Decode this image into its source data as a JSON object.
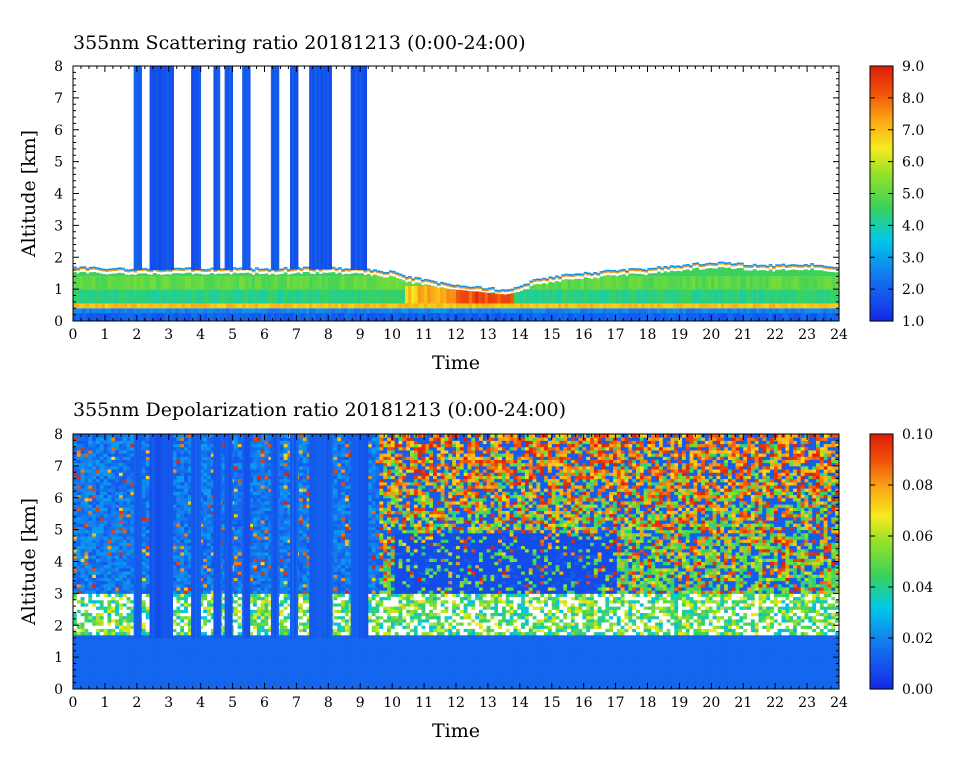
{
  "chart_data": [
    {
      "type": "heatmap",
      "title": "355nm Scattering ratio  20181213 (0:00-24:00)",
      "xlabel": "Time",
      "ylabel": "Altitude [km]",
      "xlim": [
        0,
        24
      ],
      "ylim": [
        0,
        8
      ],
      "x_ticks": [
        "0",
        "1",
        "2",
        "3",
        "4",
        "5",
        "6",
        "7",
        "8",
        "9",
        "10",
        "11",
        "12",
        "13",
        "14",
        "15",
        "16",
        "17",
        "18",
        "19",
        "20",
        "21",
        "22",
        "23",
        "24"
      ],
      "y_ticks": [
        "0",
        "1",
        "2",
        "3",
        "4",
        "5",
        "6",
        "7",
        "8"
      ],
      "colorbar": {
        "range": [
          1.0,
          9.0
        ],
        "ticks": [
          "1.0",
          "2.0",
          "3.0",
          "4.0",
          "5.0",
          "6.0",
          "7.0",
          "8.0",
          "9.0"
        ]
      },
      "cloud_columns": [
        {
          "t0": 1.9,
          "t1": 2.1,
          "value": 2.0
        },
        {
          "t0": 2.4,
          "t1": 3.1,
          "value": 1.7
        },
        {
          "t0": 3.7,
          "t1": 3.95,
          "value": 1.9
        },
        {
          "t0": 4.4,
          "t1": 4.6,
          "value": 1.9
        },
        {
          "t0": 4.75,
          "t1": 4.95,
          "value": 1.9
        },
        {
          "t0": 5.3,
          "t1": 5.5,
          "value": 1.9
        },
        {
          "t0": 6.2,
          "t1": 6.4,
          "value": 1.9
        },
        {
          "t0": 6.8,
          "t1": 7.0,
          "value": 1.9
        },
        {
          "t0": 7.4,
          "t1": 8.1,
          "value": 1.8
        },
        {
          "t0": 8.7,
          "t1": 9.2,
          "value": 1.8
        }
      ],
      "pbl_top_km": [
        [
          0,
          1.65
        ],
        [
          1,
          1.6
        ],
        [
          2,
          1.6
        ],
        [
          3,
          1.6
        ],
        [
          4,
          1.6
        ],
        [
          5,
          1.6
        ],
        [
          6,
          1.6
        ],
        [
          7,
          1.62
        ],
        [
          8,
          1.62
        ],
        [
          9,
          1.6
        ],
        [
          9.5,
          1.55
        ],
        [
          10,
          1.5
        ],
        [
          10.5,
          1.35
        ],
        [
          11,
          1.25
        ],
        [
          11.5,
          1.15
        ],
        [
          12,
          1.1
        ],
        [
          12.5,
          1.05
        ],
        [
          13,
          1.0
        ],
        [
          13.5,
          0.95
        ],
        [
          14,
          1.05
        ],
        [
          14.5,
          1.25
        ],
        [
          15,
          1.35
        ],
        [
          16,
          1.45
        ],
        [
          17,
          1.55
        ],
        [
          18,
          1.6
        ],
        [
          19,
          1.7
        ],
        [
          20,
          1.8
        ],
        [
          21,
          1.75
        ],
        [
          22,
          1.7
        ],
        [
          23,
          1.75
        ],
        [
          24,
          1.6
        ]
      ],
      "layer_values": [
        {
          "h0": 0.0,
          "h1": 0.25,
          "value": 2.0
        },
        {
          "h0": 0.25,
          "h1": 0.4,
          "value": 2.6
        },
        {
          "h0": 0.4,
          "h1": 0.55,
          "value": 7.0
        },
        {
          "h0": 0.55,
          "h1": 1.0,
          "value": 4.3
        },
        {
          "h0": 1.0,
          "h1": 1.4,
          "value": 5.0
        }
      ],
      "hotspot": {
        "t0": 10.4,
        "t1": 13.7,
        "h0": 0.55,
        "h1": 1.1,
        "value": 8.5
      }
    },
    {
      "type": "heatmap",
      "title": "355nm Depolarization ratio  20181213 (0:00-24:00)",
      "xlabel": "Time",
      "ylabel": "Altitude [km]",
      "xlim": [
        0,
        24
      ],
      "ylim": [
        0,
        8
      ],
      "x_ticks": [
        "0",
        "1",
        "2",
        "3",
        "4",
        "5",
        "6",
        "7",
        "8",
        "9",
        "10",
        "11",
        "12",
        "13",
        "14",
        "15",
        "16",
        "17",
        "18",
        "19",
        "20",
        "21",
        "22",
        "23",
        "24"
      ],
      "y_ticks": [
        "0",
        "1",
        "2",
        "3",
        "4",
        "5",
        "6",
        "7",
        "8"
      ],
      "colorbar": {
        "range": [
          0.0,
          0.1
        ],
        "ticks": [
          "0.00",
          "0.02",
          "0.04",
          "0.06",
          "0.08",
          "0.10"
        ]
      },
      "bands": [
        {
          "h0": 0.0,
          "h1": 1.7,
          "value": 0.014
        },
        {
          "h0": 1.7,
          "h1": 3.0,
          "value": 0.045
        },
        {
          "h0": 3.0,
          "h1": 8.0,
          "value": 0.01
        }
      ],
      "noisy_region": {
        "t0": 9.5,
        "t1": 24,
        "h0": 3.0,
        "h1": 8.0,
        "value": 0.085
      },
      "cloud_columns": [
        {
          "t0": 1.9,
          "t1": 2.1,
          "value": 0.012
        },
        {
          "t0": 2.4,
          "t1": 3.1,
          "value": 0.01
        },
        {
          "t0": 3.7,
          "t1": 3.95,
          "value": 0.012
        },
        {
          "t0": 4.4,
          "t1": 4.6,
          "value": 0.012
        },
        {
          "t0": 4.75,
          "t1": 4.95,
          "value": 0.012
        },
        {
          "t0": 5.3,
          "t1": 5.5,
          "value": 0.012
        },
        {
          "t0": 6.2,
          "t1": 6.4,
          "value": 0.012
        },
        {
          "t0": 6.8,
          "t1": 7.0,
          "value": 0.012
        },
        {
          "t0": 7.4,
          "t1": 8.1,
          "value": 0.012
        },
        {
          "t0": 8.7,
          "t1": 9.2,
          "value": 0.012
        }
      ]
    }
  ]
}
